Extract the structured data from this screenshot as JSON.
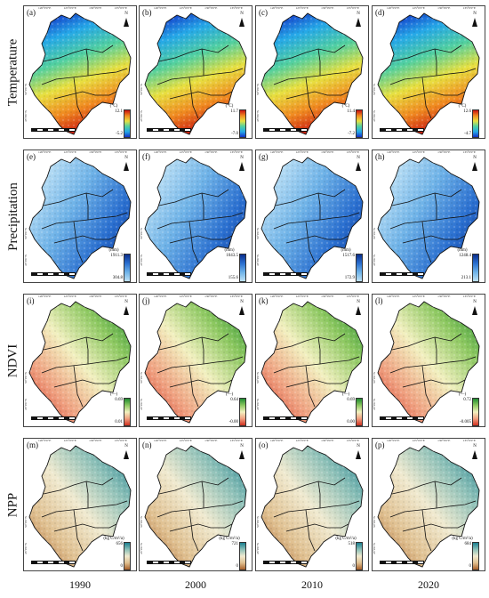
{
  "rows": [
    {
      "label": "Temperature",
      "unit": "(°C)",
      "theme": "temp",
      "panels": [
        {
          "letter": "(a)",
          "max": "12.1",
          "min": "-5.2"
        },
        {
          "letter": "(b)",
          "max": "11.7",
          "min": "-7.0"
        },
        {
          "letter": "(c)",
          "max": "11.4",
          "min": "-7.2"
        },
        {
          "letter": "(d)",
          "max": "12.6",
          "min": "-4.7"
        }
      ]
    },
    {
      "label": "Precipitation",
      "unit": "(mm)",
      "theme": "prec",
      "panels": [
        {
          "letter": "(e)",
          "max": "1911.3",
          "min": "304.8"
        },
        {
          "letter": "(f)",
          "max": "1043.5",
          "min": "155.6"
        },
        {
          "letter": "(g)",
          "max": "1517.6",
          "min": "172.9"
        },
        {
          "letter": "(h)",
          "max": "1248.4",
          "min": "213.1"
        }
      ]
    },
    {
      "label": "NDVI",
      "unit": "(—)",
      "theme": "ndvi",
      "panels": [
        {
          "letter": "(i)",
          "max": "0.69",
          "min": "0.01"
        },
        {
          "letter": "(j)",
          "max": "0.64",
          "min": "-0.00"
        },
        {
          "letter": "(k)",
          "max": "0.69",
          "min": "0.00"
        },
        {
          "letter": "(l)",
          "max": "0.72",
          "min": "-0.005"
        }
      ]
    },
    {
      "label": "NPP",
      "unit": "(kg C/m²/a)",
      "theme": "npp",
      "panels": [
        {
          "letter": "(m)",
          "max": "656",
          "min": "0"
        },
        {
          "letter": "(n)",
          "max": "721",
          "min": "0"
        },
        {
          "letter": "(o)",
          "max": "518",
          "min": "0"
        },
        {
          "letter": "(p)",
          "max": "684",
          "min": "0"
        }
      ]
    }
  ],
  "columns": [
    "1990",
    "2000",
    "2010",
    "2020"
  ],
  "north_label": "N",
  "lon_ticks": [
    "120°0'0\"E",
    "125°0'0\"E",
    "130°0'0\"E",
    "135°0'0\"E"
  ],
  "lat_ticks": [
    "50°0'0\"N",
    "45°0'0\"N"
  ],
  "themes": {
    "temp": {
      "stops": [
        "#1330c8",
        "#25a8e8",
        "#52d0a0",
        "#e8e040",
        "#f08a20",
        "#c81010"
      ]
    },
    "prec": {
      "stops": [
        "#bfe2f6",
        "#6fb3e8",
        "#2a6fd0",
        "#0b2f8c"
      ]
    },
    "ndvi": {
      "stops": [
        "#d03020",
        "#f0a080",
        "#f2f0c0",
        "#8cc860",
        "#1e8a30"
      ]
    },
    "npp": {
      "stops": [
        "#a8602a",
        "#e0c090",
        "#f0ead0",
        "#8cc0b8",
        "#1a8090"
      ]
    }
  }
}
